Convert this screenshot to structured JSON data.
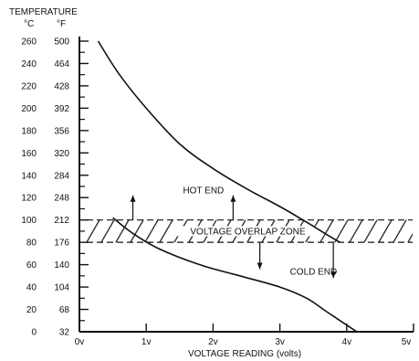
{
  "chart_data": {
    "type": "line",
    "title": "",
    "ylabel": "TEMPERATURE",
    "ylabel_units": [
      "°C",
      "°F"
    ],
    "xlabel": "VOLTAGE READING (volts)",
    "x_ticks": [
      {
        "value": 0,
        "label": "0v"
      },
      {
        "value": 1,
        "label": "1v"
      },
      {
        "value": 2,
        "label": "2v"
      },
      {
        "value": 3,
        "label": "3v"
      },
      {
        "value": 4,
        "label": "4v"
      },
      {
        "value": 5,
        "label": "5v"
      }
    ],
    "y_ticks": [
      {
        "c": 0,
        "f": "32"
      },
      {
        "c": 20,
        "f": "68"
      },
      {
        "c": 40,
        "f": "104"
      },
      {
        "c": 60,
        "f": "140"
      },
      {
        "c": 80,
        "f": "176"
      },
      {
        "c": 100,
        "f": "212"
      },
      {
        "c": 120,
        "f": "248"
      },
      {
        "c": 140,
        "f": "284"
      },
      {
        "c": 160,
        "f": "320"
      },
      {
        "c": 180,
        "f": "356"
      },
      {
        "c": 200,
        "f": "392"
      },
      {
        "c": 220,
        "f": "428"
      },
      {
        "c": 240,
        "f": "464"
      },
      {
        "c": 260,
        "f": "500"
      }
    ],
    "xlim": [
      0,
      5
    ],
    "ylim": [
      0,
      260
    ],
    "grid": false,
    "series": [
      {
        "key": "hot",
        "points": [
          [
            0.28,
            260
          ],
          [
            0.6,
            230
          ],
          [
            1.0,
            200
          ],
          [
            1.5,
            168
          ],
          [
            2.0,
            146
          ],
          [
            2.5,
            128
          ],
          [
            3.0,
            112
          ],
          [
            3.4,
            98
          ],
          [
            3.7,
            87
          ],
          [
            3.9,
            80
          ]
        ]
      },
      {
        "key": "cold",
        "points": [
          [
            0.5,
            102
          ],
          [
            0.8,
            88
          ],
          [
            1.2,
            74
          ],
          [
            1.8,
            60
          ],
          [
            2.4,
            50
          ],
          [
            3.0,
            40
          ],
          [
            3.4,
            30
          ],
          [
            3.7,
            18
          ],
          [
            4.0,
            6
          ],
          [
            4.15,
            0
          ]
        ]
      }
    ],
    "overlap_zone": {
      "label": "VOLTAGE OVERLAP ZONE",
      "y_range": [
        80,
        100
      ],
      "x_range": [
        0,
        5
      ]
    },
    "annotations": [
      {
        "text": "HOT END",
        "x": 1.55,
        "y": 124
      },
      {
        "text": "COLD END",
        "x": 3.15,
        "y": 51
      }
    ],
    "arrows": [
      {
        "x": 0.8,
        "from_y": 100,
        "to_y": 122,
        "direction": "up"
      },
      {
        "x": 2.3,
        "from_y": 100,
        "to_y": 122,
        "direction": "up"
      },
      {
        "x": 2.7,
        "from_y": 80,
        "to_y": 56,
        "direction": "down"
      },
      {
        "x": 3.8,
        "from_y": 80,
        "to_y": 48,
        "direction": "down"
      }
    ]
  }
}
